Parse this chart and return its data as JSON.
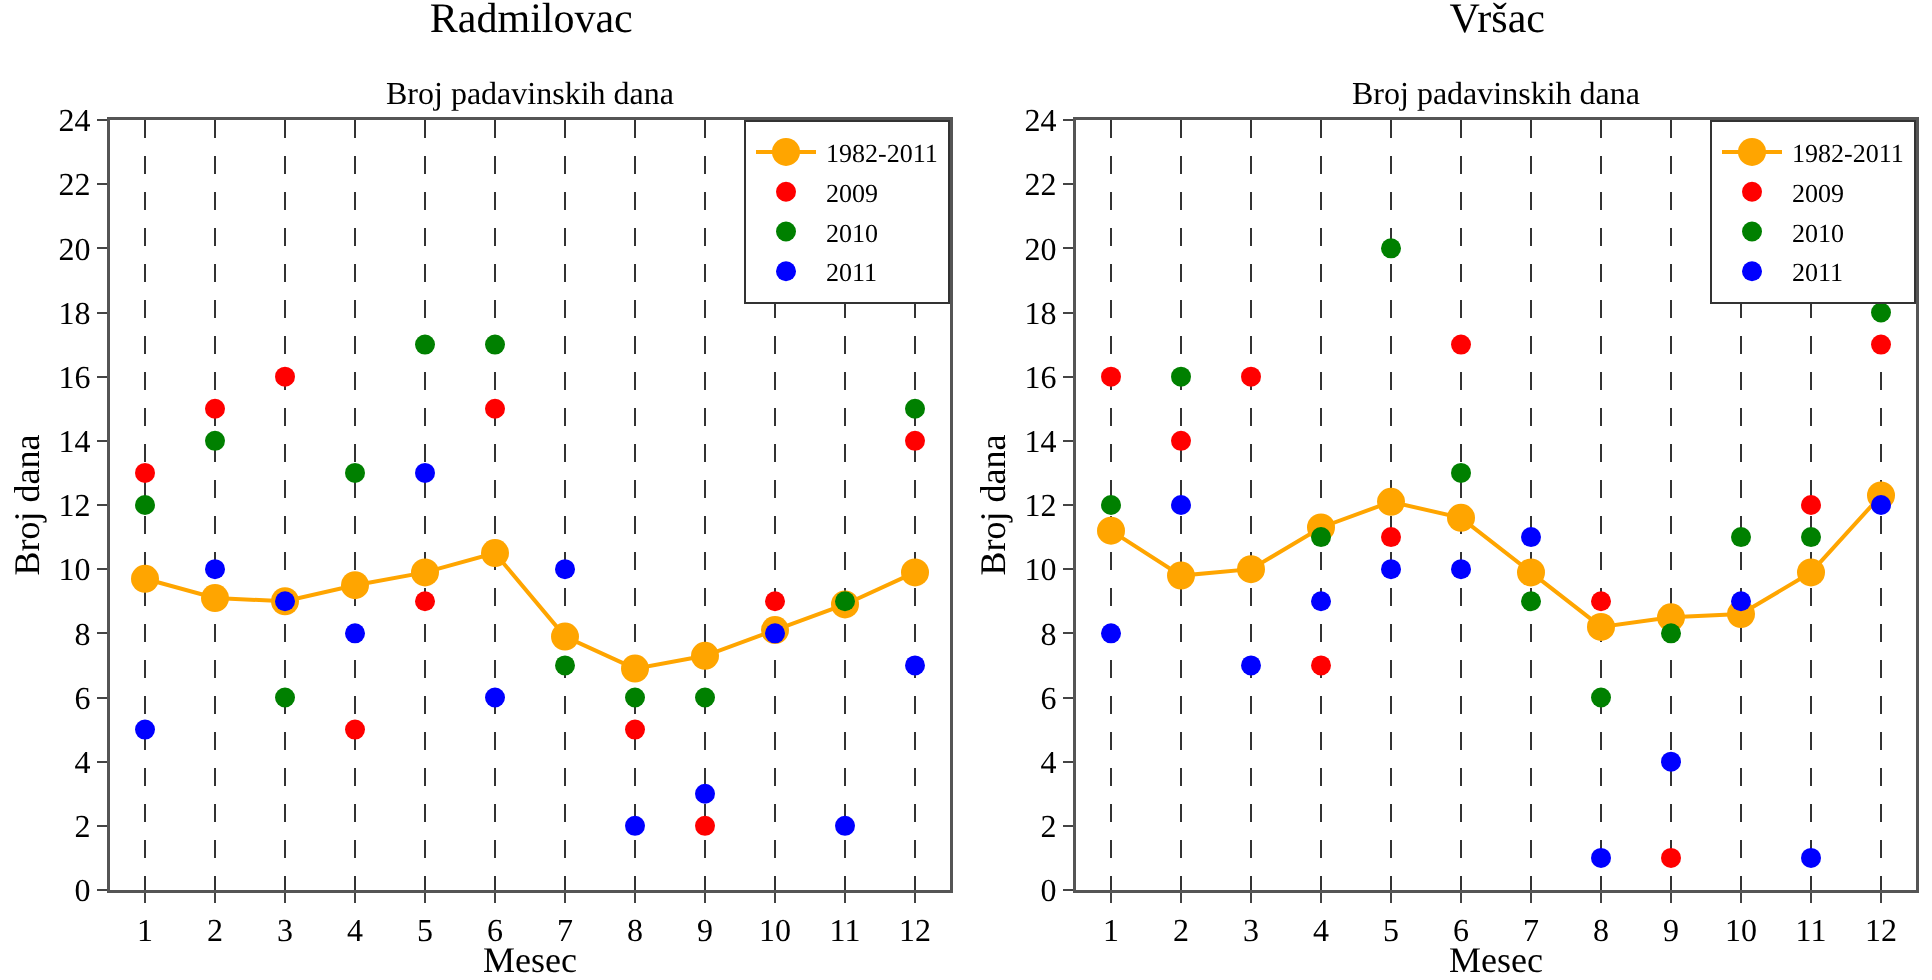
{
  "chart_data": [
    {
      "type": "scatter",
      "title": "Radmilovac",
      "subtitle": "Broj padavinskih dana",
      "xlabel": "Mesec",
      "ylabel": "Broj dana",
      "x": [
        1,
        2,
        3,
        4,
        5,
        6,
        7,
        8,
        9,
        10,
        11,
        12
      ],
      "xlim": [
        0.5,
        12.5
      ],
      "xticks": [
        1,
        2,
        3,
        4,
        5,
        6,
        7,
        8,
        9,
        10,
        11,
        12
      ],
      "ylim": [
        0,
        24
      ],
      "yticks": [
        0,
        2,
        4,
        6,
        8,
        10,
        12,
        14,
        16,
        18,
        20,
        22,
        24
      ],
      "grid": "x",
      "legend": "top right",
      "marker": "circle",
      "series": [
        {
          "name": "1982-2011",
          "type": "line",
          "color": "#ffa500",
          "values": [
            9.7,
            9.1,
            9.0,
            9.5,
            9.9,
            10.5,
            7.9,
            6.9,
            7.3,
            8.1,
            8.9,
            9.9
          ]
        },
        {
          "name": "2009",
          "color": "#ff0000",
          "values": [
            13,
            15,
            16,
            5,
            9,
            15,
            null,
            5,
            2,
            9,
            null,
            14
          ]
        },
        {
          "name": "2010",
          "color": "#008000",
          "values": [
            12,
            14,
            6,
            13,
            17,
            17,
            7,
            6,
            6,
            null,
            9,
            15
          ]
        },
        {
          "name": "2011",
          "color": "#0000ff",
          "values": [
            5,
            10,
            9,
            8,
            13,
            6,
            10,
            2,
            3,
            8,
            2,
            7
          ]
        }
      ]
    },
    {
      "type": "scatter",
      "title": "Vršac",
      "subtitle": "Broj padavinskih dana",
      "xlabel": "Mesec",
      "ylabel": "Broj dana",
      "x": [
        1,
        2,
        3,
        4,
        5,
        6,
        7,
        8,
        9,
        10,
        11,
        12
      ],
      "xlim": [
        0.5,
        12.5
      ],
      "xticks": [
        1,
        2,
        3,
        4,
        5,
        6,
        7,
        8,
        9,
        10,
        11,
        12
      ],
      "ylim": [
        0,
        24
      ],
      "yticks": [
        0,
        2,
        4,
        6,
        8,
        10,
        12,
        14,
        16,
        18,
        20,
        22,
        24
      ],
      "grid": "x",
      "legend": "top right",
      "marker": "circle",
      "series": [
        {
          "name": "1982-2011",
          "type": "line",
          "color": "#ffa500",
          "values": [
            11.2,
            9.8,
            10.0,
            11.3,
            12.1,
            11.6,
            9.9,
            8.2,
            8.5,
            8.6,
            9.9,
            12.3
          ]
        },
        {
          "name": "2009",
          "color": "#ff0000",
          "values": [
            16,
            14,
            16,
            7,
            11,
            17,
            null,
            9,
            1,
            null,
            12,
            17
          ]
        },
        {
          "name": "2010",
          "color": "#008000",
          "values": [
            12,
            16,
            null,
            11,
            20,
            13,
            9,
            6,
            8,
            11,
            11,
            18
          ]
        },
        {
          "name": "2011",
          "color": "#0000ff",
          "values": [
            8,
            12,
            7,
            9,
            10,
            10,
            11,
            1,
            4,
            9,
            1,
            12
          ]
        }
      ]
    }
  ]
}
